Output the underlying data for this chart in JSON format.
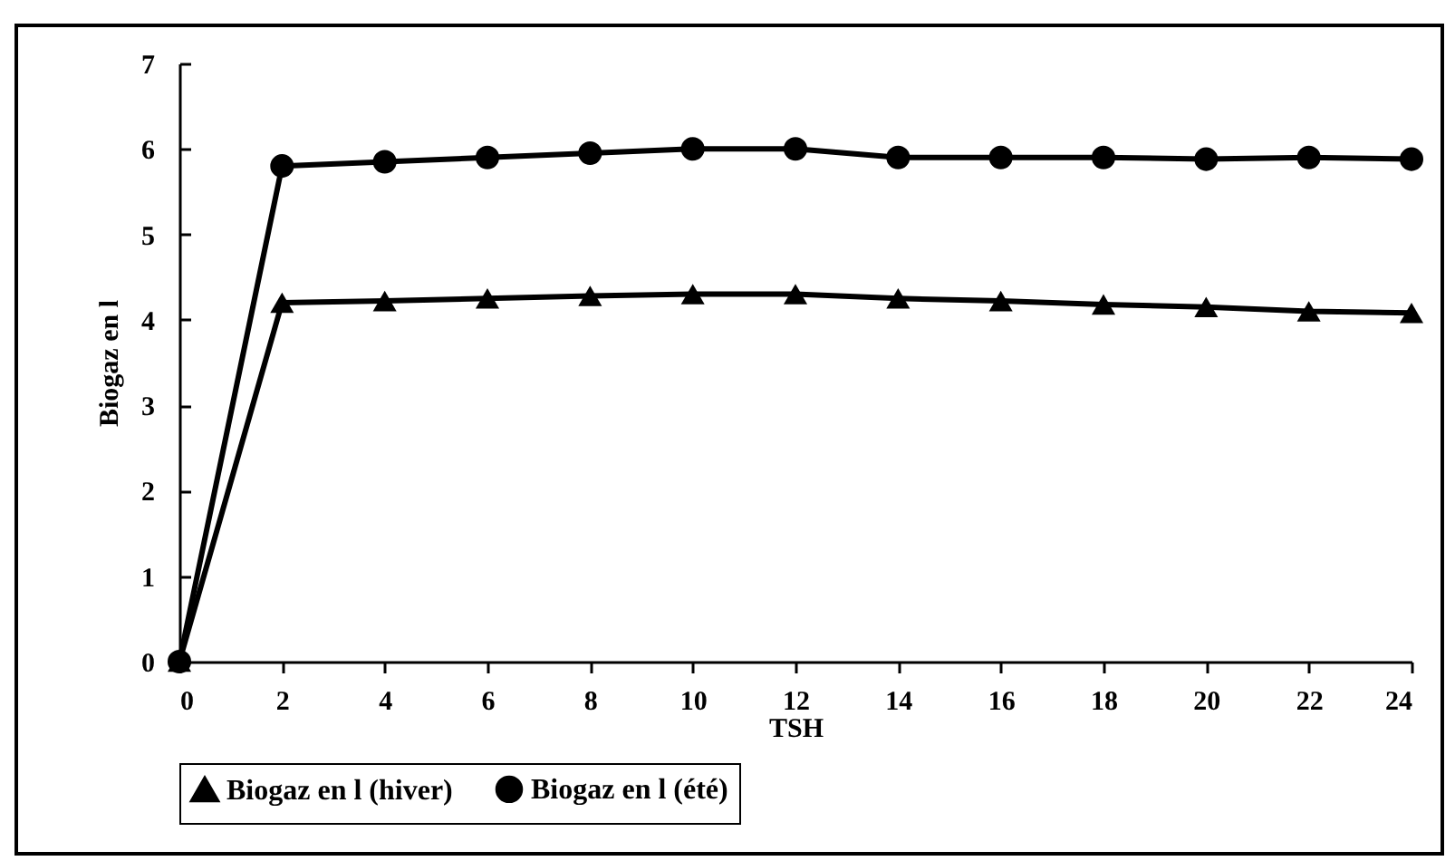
{
  "chart_data": {
    "type": "line",
    "xlabel": "TSH",
    "ylabel": "Biogaz en l",
    "x": [
      0,
      2,
      4,
      6,
      8,
      10,
      12,
      14,
      16,
      18,
      20,
      22,
      24
    ],
    "xlim": [
      0,
      24
    ],
    "xticks": [
      0,
      2,
      4,
      6,
      8,
      10,
      12,
      14,
      16,
      18,
      20,
      22,
      24
    ],
    "ylim": [
      0,
      7
    ],
    "yticks": [
      0,
      1,
      2,
      3,
      4,
      5,
      6,
      7
    ],
    "grid": false,
    "legend": "bottom",
    "line_style": "solid",
    "series": [
      {
        "name": "Biogaz  en l (hiver)",
        "color": "#000000",
        "marker": "triangle",
        "values": [
          0,
          4.2,
          4.22,
          4.25,
          4.28,
          4.3,
          4.3,
          4.25,
          4.22,
          4.18,
          4.15,
          4.1,
          4.08
        ]
      },
      {
        "name": "Biogaz en l (été)",
        "color": "#000000",
        "marker": "circle",
        "values": [
          0,
          5.8,
          5.85,
          5.9,
          5.95,
          6.0,
          6.0,
          5.9,
          5.9,
          5.9,
          5.88,
          5.9,
          5.88
        ]
      }
    ]
  }
}
